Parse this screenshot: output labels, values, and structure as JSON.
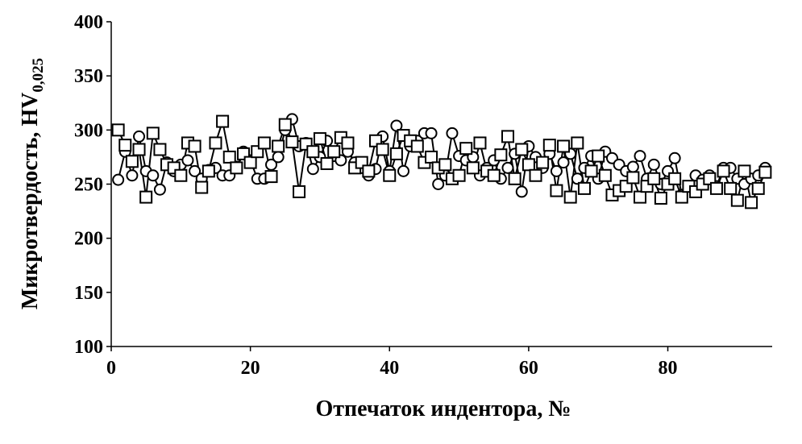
{
  "chart_data": {
    "type": "line",
    "x_label": "Отпечаток индентора, №",
    "y_label": "Микротвердость, HV",
    "y_label_subscript": "0,025",
    "x": [
      1,
      2,
      3,
      4,
      5,
      6,
      7,
      8,
      9,
      10,
      11,
      12,
      13,
      14,
      15,
      16,
      17,
      18,
      19,
      20,
      21,
      22,
      23,
      24,
      25,
      26,
      27,
      28,
      29,
      30,
      31,
      32,
      33,
      34,
      35,
      36,
      37,
      38,
      39,
      40,
      41,
      42,
      43,
      44,
      45,
      46,
      47,
      48,
      49,
      50,
      51,
      52,
      53,
      54,
      55,
      56,
      57,
      58,
      59,
      60,
      61,
      62,
      63,
      64,
      65,
      66,
      67,
      68,
      69,
      70,
      71,
      72,
      73,
      74,
      75,
      76,
      77,
      78,
      79,
      80,
      81,
      82,
      83,
      84,
      85,
      86,
      87,
      88,
      89,
      90,
      91,
      92,
      93,
      94
    ],
    "series": [
      {
        "marker": "circle",
        "color": "#000000",
        "values": [
          254,
          280,
          258,
          294,
          262,
          258,
          245,
          270,
          262,
          268,
          272,
          262,
          255,
          263,
          265,
          258,
          258,
          266,
          280,
          272,
          255,
          255,
          268,
          275,
          300,
          310,
          285,
          288,
          264,
          275,
          290,
          276,
          272,
          280,
          270,
          265,
          258,
          264,
          294,
          262,
          304,
          262,
          285,
          290,
          297,
          297,
          250,
          258,
          297,
          276,
          272,
          275,
          258,
          265,
          272,
          255,
          265,
          278,
          243,
          285,
          275,
          265,
          278,
          262,
          270,
          278,
          255,
          265,
          276,
          255,
          280,
          274,
          268,
          262,
          266,
          276,
          255,
          268,
          250,
          262,
          274,
          240,
          248,
          258,
          254,
          258,
          248,
          265,
          265,
          255,
          250,
          255,
          258,
          265
        ]
      },
      {
        "marker": "square",
        "color": "#000000",
        "values": [
          300,
          286,
          271,
          282,
          238,
          297,
          282,
          268,
          265,
          258,
          288,
          285,
          247,
          262,
          288,
          308,
          275,
          265,
          278,
          270,
          280,
          288,
          257,
          285,
          305,
          289,
          243,
          287,
          280,
          292,
          269,
          280,
          293,
          288,
          265,
          270,
          262,
          290,
          282,
          258,
          278,
          295,
          290,
          285,
          270,
          275,
          265,
          268,
          255,
          258,
          283,
          265,
          288,
          262,
          258,
          277,
          294,
          255,
          282,
          268,
          258,
          270,
          286,
          244,
          285,
          238,
          288,
          246,
          262,
          276,
          258,
          240,
          244,
          248,
          256,
          238,
          248,
          255,
          237,
          250,
          255,
          238,
          248,
          243,
          250,
          255,
          246,
          262,
          246,
          235,
          262,
          233,
          246,
          261
        ]
      }
    ],
    "xlim": [
      0,
      95
    ],
    "ylim": [
      100,
      400
    ],
    "xticks": [
      0,
      20,
      40,
      60,
      80
    ],
    "yticks": [
      100,
      150,
      200,
      250,
      300,
      350,
      400
    ]
  }
}
